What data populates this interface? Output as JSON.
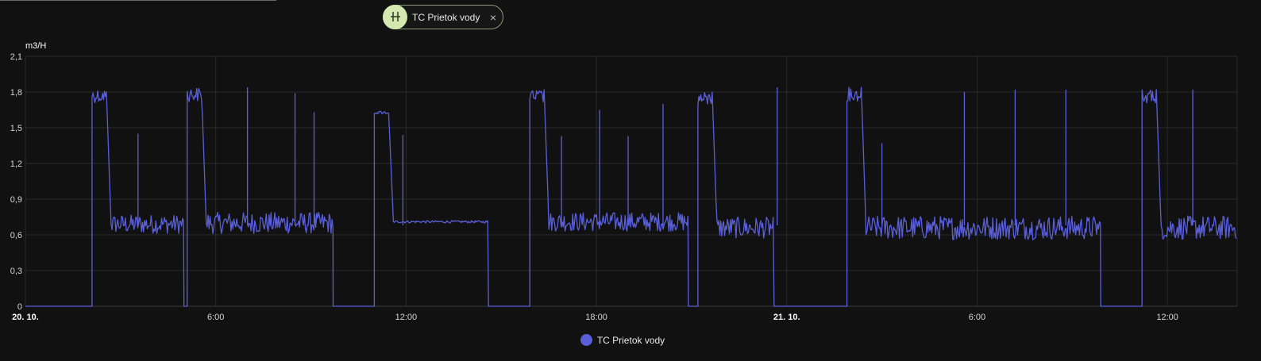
{
  "filter_chip": {
    "label": "TC Prietok vody",
    "icon": "toggle-icon",
    "close_label": "×"
  },
  "chart_data": {
    "type": "line",
    "unit_label": "m3/H",
    "ylim": [
      0,
      2.1
    ],
    "yticks": [
      "0",
      "0,3",
      "0,6",
      "0,9",
      "1,2",
      "1,5",
      "1,8",
      "2,1"
    ],
    "xlim_hours": [
      0,
      38.2
    ],
    "xticks": [
      {
        "h": 0,
        "label": "20. 10.",
        "bold": true
      },
      {
        "h": 6,
        "label": "6:00",
        "bold": false
      },
      {
        "h": 12,
        "label": "12:00",
        "bold": false
      },
      {
        "h": 18,
        "label": "18:00",
        "bold": false
      },
      {
        "h": 24,
        "label": "21. 10.",
        "bold": true
      },
      {
        "h": 30,
        "label": "6:00",
        "bold": false
      },
      {
        "h": 36,
        "label": "12:00",
        "bold": false
      }
    ],
    "grid": true,
    "legend_position": "bottom",
    "series": [
      {
        "name": "TC Prietok vody",
        "color": "#5a5fd9",
        "segments": [
          {
            "start": 0.0,
            "end": 2.1,
            "peak": 0,
            "base": 0,
            "noise": 0
          },
          {
            "start": 2.1,
            "end": 5.0,
            "peak": 1.83,
            "base": 0.69,
            "noise": 0.08
          },
          {
            "start": 5.0,
            "end": 5.1,
            "peak": 0,
            "base": 0,
            "noise": 0
          },
          {
            "start": 5.1,
            "end": 9.7,
            "peak": 1.84,
            "base": 0.7,
            "noise": 0.09
          },
          {
            "start": 9.7,
            "end": 11.0,
            "peak": 0,
            "base": 0,
            "noise": 0
          },
          {
            "start": 11.0,
            "end": 14.6,
            "peak": 1.64,
            "base": 0.71,
            "noise": 0.01
          },
          {
            "start": 14.6,
            "end": 15.9,
            "peak": 0,
            "base": 0,
            "noise": 0
          },
          {
            "start": 15.9,
            "end": 20.9,
            "peak": 1.82,
            "base": 0.71,
            "noise": 0.08
          },
          {
            "start": 20.9,
            "end": 21.2,
            "peak": 0,
            "base": 0,
            "noise": 0
          },
          {
            "start": 21.2,
            "end": 23.6,
            "peak": 1.8,
            "base": 0.66,
            "noise": 0.09
          },
          {
            "start": 23.6,
            "end": 25.9,
            "peak": 0,
            "base": 0,
            "noise": 0
          },
          {
            "start": 25.9,
            "end": 33.9,
            "peak": 1.84,
            "base": 0.66,
            "noise": 0.1
          },
          {
            "start": 33.9,
            "end": 35.2,
            "peak": 0,
            "base": 0,
            "noise": 0
          },
          {
            "start": 35.2,
            "end": 38.2,
            "peak": 1.82,
            "base": 0.66,
            "noise": 0.1
          }
        ],
        "spikes": [
          {
            "h": 3.55,
            "y": 1.45
          },
          {
            "h": 7.0,
            "y": 1.84
          },
          {
            "h": 8.5,
            "y": 1.79
          },
          {
            "h": 9.1,
            "y": 1.63
          },
          {
            "h": 11.9,
            "y": 1.44
          },
          {
            "h": 16.9,
            "y": 1.43
          },
          {
            "h": 18.1,
            "y": 1.65
          },
          {
            "h": 19.0,
            "y": 1.43
          },
          {
            "h": 20.1,
            "y": 1.7
          },
          {
            "h": 23.7,
            "y": 1.84
          },
          {
            "h": 27.0,
            "y": 1.37
          },
          {
            "h": 29.6,
            "y": 1.8
          },
          {
            "h": 31.2,
            "y": 1.82
          },
          {
            "h": 32.8,
            "y": 1.82
          },
          {
            "h": 36.8,
            "y": 1.82
          }
        ]
      }
    ]
  }
}
